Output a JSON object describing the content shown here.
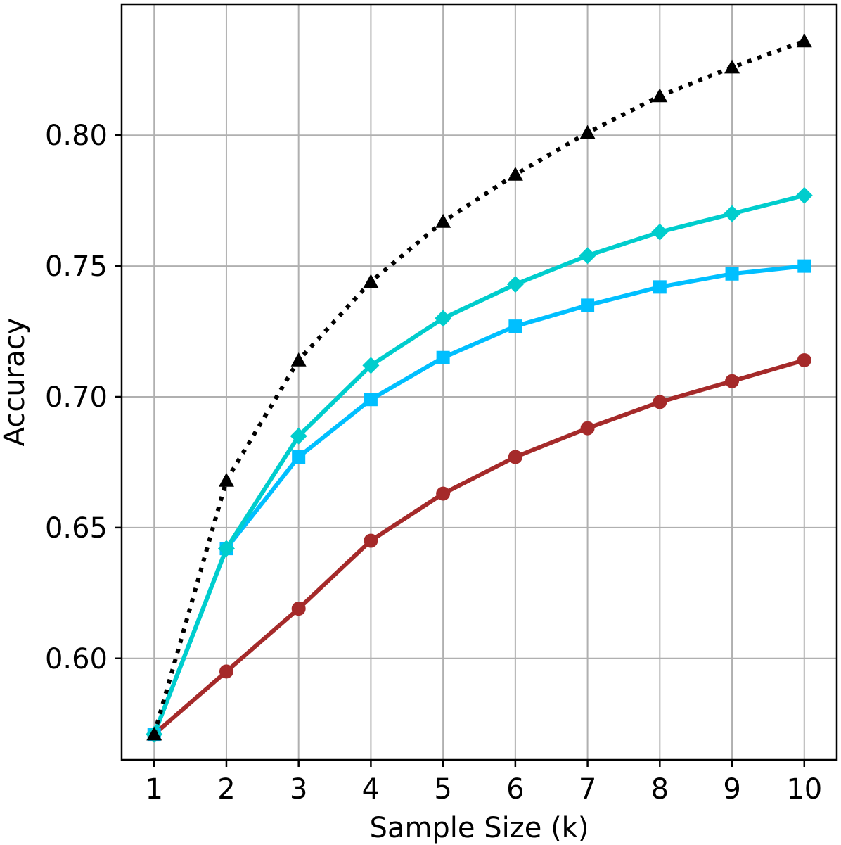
{
  "chart_data": {
    "type": "line",
    "title": "",
    "xlabel": "Sample Size (k)",
    "ylabel": "Accuracy",
    "x": [
      1,
      2,
      3,
      4,
      5,
      6,
      7,
      8,
      9,
      10
    ],
    "x_tick_labels": [
      "1",
      "2",
      "3",
      "4",
      "5",
      "6",
      "7",
      "8",
      "9",
      "10"
    ],
    "y_ticks": [
      0.6,
      0.65,
      0.7,
      0.75,
      0.8
    ],
    "y_tick_labels": [
      "0.60",
      "0.65",
      "0.70",
      "0.75",
      "0.80"
    ],
    "xlim": [
      0.55,
      10.45
    ],
    "ylim": [
      0.5612,
      0.8501
    ],
    "grid": true,
    "legend": "none",
    "series": [
      {
        "color": "#a52a2a",
        "marker": "circle",
        "line_style": "solid",
        "values": [
          0.571,
          0.595,
          0.619,
          0.645,
          0.663,
          0.677,
          0.688,
          0.698,
          0.706,
          0.714
        ]
      },
      {
        "color": "#00bfff",
        "marker": "square",
        "line_style": "solid",
        "values": [
          0.571,
          0.642,
          0.677,
          0.699,
          0.715,
          0.727,
          0.735,
          0.742,
          0.747,
          0.75
        ]
      },
      {
        "color": "#00cdcd",
        "marker": "diamond",
        "line_style": "solid",
        "values": [
          0.571,
          0.642,
          0.685,
          0.712,
          0.73,
          0.743,
          0.754,
          0.763,
          0.77,
          0.777
        ]
      },
      {
        "color": "#000000",
        "marker": "triangle",
        "line_style": "dotted",
        "values": [
          0.571,
          0.668,
          0.714,
          0.744,
          0.767,
          0.785,
          0.801,
          0.815,
          0.826,
          0.836
        ]
      }
    ]
  }
}
